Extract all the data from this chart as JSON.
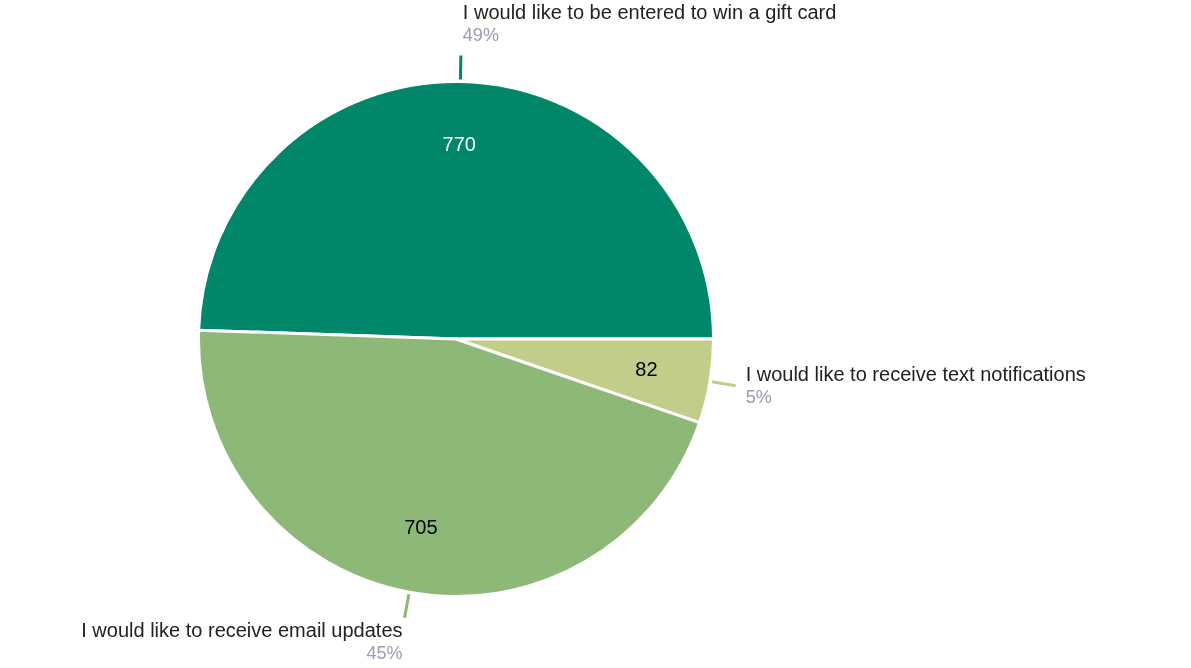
{
  "chart_data": {
    "type": "pie",
    "categories": [
      "I would like to be entered to win a gift card",
      "I would like to receive text notifications",
      "I would like to receive email updates"
    ],
    "values": [
      770,
      82,
      705
    ],
    "colors": [
      "#00876a",
      "#c2cd8a",
      "#8db877"
    ],
    "data_labels": true,
    "annotations": [
      "49%",
      "5%",
      "45%"
    ],
    "legend": false
  }
}
